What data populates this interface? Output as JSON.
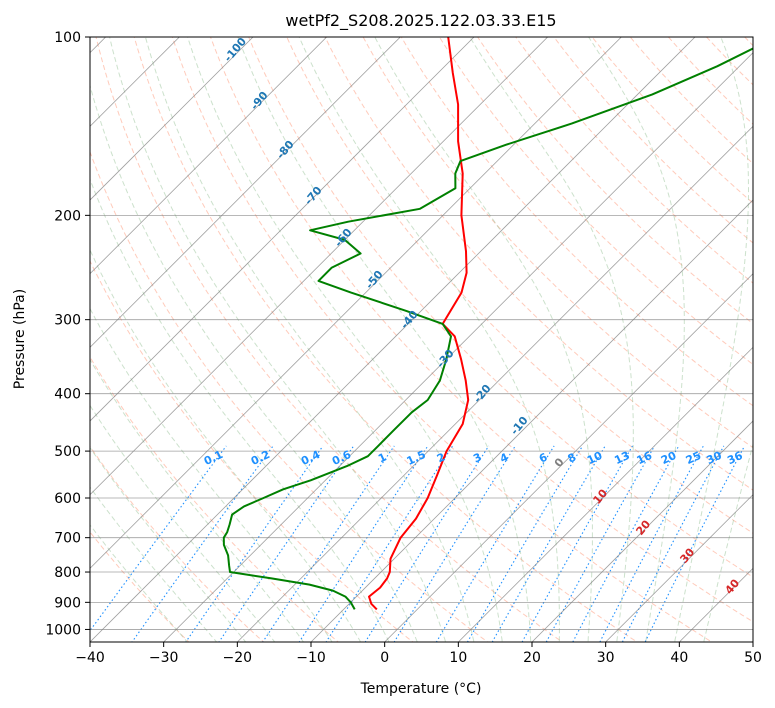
{
  "chart_data": {
    "type": "line",
    "title": "wetPf2_S208.2025.122.03.33.E15",
    "xlabel": "Temperature (°C)",
    "ylabel": "Pressure (hPa)",
    "xlim": [
      -40,
      50
    ],
    "ylim": [
      1050,
      100
    ],
    "y_scale": "log",
    "grid": true,
    "x_ticks": [
      -40,
      -30,
      -20,
      -10,
      0,
      10,
      20,
      30,
      40,
      50
    ],
    "y_ticks": [
      100,
      200,
      300,
      400,
      500,
      600,
      700,
      800,
      900,
      1000
    ],
    "series": [
      {
        "kind": "temperature",
        "color": "#ff0000",
        "points": [
          {
            "p": 925,
            "t": -5.5
          },
          {
            "p": 905,
            "t": -7
          },
          {
            "p": 880,
            "t": -8.3
          },
          {
            "p": 850,
            "t": -8
          },
          {
            "p": 820,
            "t": -8.3
          },
          {
            "p": 800,
            "t": -8.8
          },
          {
            "p": 760,
            "t": -10.5
          },
          {
            "p": 700,
            "t": -12
          },
          {
            "p": 650,
            "t": -12.5
          },
          {
            "p": 600,
            "t": -13.7
          },
          {
            "p": 550,
            "t": -15.5
          },
          {
            "p": 500,
            "t": -17.5
          },
          {
            "p": 450,
            "t": -19
          },
          {
            "p": 410,
            "t": -21.5
          },
          {
            "p": 380,
            "t": -24.5
          },
          {
            "p": 350,
            "t": -28
          },
          {
            "p": 320,
            "t": -32
          },
          {
            "p": 305,
            "t": -35.3
          },
          {
            "p": 290,
            "t": -36
          },
          {
            "p": 270,
            "t": -37
          },
          {
            "p": 250,
            "t": -39
          },
          {
            "p": 230,
            "t": -42
          },
          {
            "p": 200,
            "t": -47.5
          },
          {
            "p": 170,
            "t": -53
          },
          {
            "p": 150,
            "t": -58
          },
          {
            "p": 130,
            "t": -63
          },
          {
            "p": 115,
            "t": -68
          },
          {
            "p": 100,
            "t": -73.5
          }
        ]
      },
      {
        "kind": "dewpoint",
        "color": "#008000",
        "points": [
          {
            "p": 925,
            "t": -8.5
          },
          {
            "p": 900,
            "t": -10
          },
          {
            "p": 880,
            "t": -11.5
          },
          {
            "p": 860,
            "t": -14
          },
          {
            "p": 840,
            "t": -18
          },
          {
            "p": 820,
            "t": -24
          },
          {
            "p": 800,
            "t": -30.5
          },
          {
            "p": 780,
            "t": -31.5
          },
          {
            "p": 750,
            "t": -33
          },
          {
            "p": 720,
            "t": -35
          },
          {
            "p": 700,
            "t": -36
          },
          {
            "p": 685,
            "t": -36.3
          },
          {
            "p": 665,
            "t": -37
          },
          {
            "p": 640,
            "t": -38
          },
          {
            "p": 620,
            "t": -37.5
          },
          {
            "p": 600,
            "t": -36
          },
          {
            "p": 580,
            "t": -34.5
          },
          {
            "p": 560,
            "t": -32
          },
          {
            "p": 530,
            "t": -29
          },
          {
            "p": 510,
            "t": -27.5
          },
          {
            "p": 490,
            "t": -27.5
          },
          {
            "p": 460,
            "t": -27.5
          },
          {
            "p": 430,
            "t": -27.5
          },
          {
            "p": 410,
            "t": -27
          },
          {
            "p": 380,
            "t": -28
          },
          {
            "p": 350,
            "t": -30
          },
          {
            "p": 320,
            "t": -32.5
          },
          {
            "p": 305,
            "t": -35.3
          },
          {
            "p": 290,
            "t": -42
          },
          {
            "p": 270,
            "t": -52
          },
          {
            "p": 258,
            "t": -58
          },
          {
            "p": 245,
            "t": -58
          },
          {
            "p": 232,
            "t": -56
          },
          {
            "p": 220,
            "t": -60
          },
          {
            "p": 212,
            "t": -66
          },
          {
            "p": 205,
            "t": -62
          },
          {
            "p": 195,
            "t": -54
          },
          {
            "p": 180,
            "t": -52
          },
          {
            "p": 170,
            "t": -54
          },
          {
            "p": 162,
            "t": -55
          },
          {
            "p": 152,
            "t": -51
          },
          {
            "p": 140,
            "t": -45
          },
          {
            "p": 125,
            "t": -38
          },
          {
            "p": 112,
            "t": -33
          },
          {
            "p": 100,
            "t": -29
          }
        ]
      }
    ],
    "dry_adiabat_labels": [
      "-100",
      "-90",
      "-80",
      "-70",
      "-60",
      "-50",
      "-40",
      "-30",
      "-20",
      "-10",
      "0"
    ],
    "moist_adiabat_labels": [
      "10",
      "20",
      "30",
      "40"
    ],
    "mixing_ratio_labels": [
      "0.1",
      "0.2",
      "0.4",
      "0.6",
      "1",
      "1.5",
      "2",
      "3",
      "4",
      "6",
      "8",
      "10",
      "13",
      "16",
      "20",
      "25",
      "30",
      "36"
    ],
    "mixing_ratio_values": [
      0.1,
      0.2,
      0.4,
      0.6,
      1,
      1.5,
      2,
      3,
      4,
      6,
      8,
      10,
      13,
      16,
      20,
      25,
      30,
      36
    ],
    "colors": {
      "temperature": "#ff0000",
      "dewpoint": "#008000",
      "dry_adiabat": "#ff8c69",
      "moist_adiabat": "#8fbc8f",
      "mixing_ratio": "#1e90ff",
      "isotherm": "#808080",
      "isobar": "#808080"
    }
  }
}
